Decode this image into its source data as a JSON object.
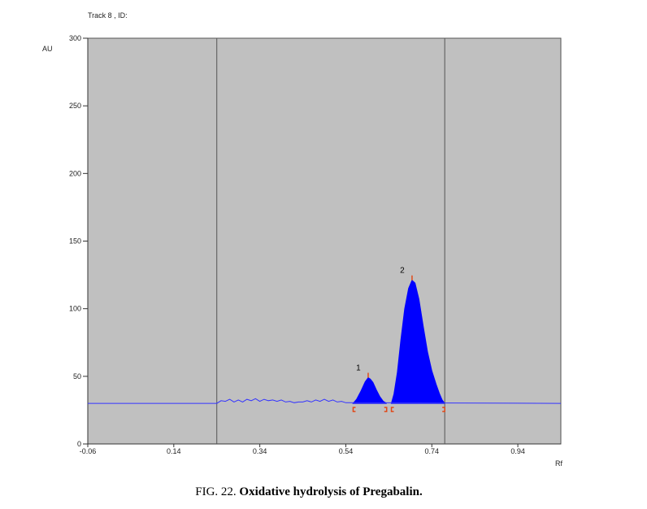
{
  "caption": {
    "prefix": "FIG. 22.",
    "title": "Oxidative hydrolysis of Pregabalin."
  },
  "chart_data": {
    "type": "area",
    "header": "Track  8 , ID:",
    "ylabel": "AU",
    "xlabel": "Rf",
    "xlim": [
      -0.06,
      1.04
    ],
    "ylim": [
      0,
      300
    ],
    "x_ticks": [
      -0.06,
      0.14,
      0.34,
      0.54,
      0.74,
      0.94
    ],
    "x_tick_labels": [
      "-0.06",
      "0.14",
      "0.34",
      "0.54",
      "0.74",
      "0.94"
    ],
    "y_ticks": [
      0,
      50,
      100,
      150,
      200,
      250,
      300
    ],
    "y_tick_labels": [
      "0",
      "50",
      "100",
      "150",
      "200",
      "250",
      "300"
    ],
    "grid": false,
    "plot_background": "#c0c0c0",
    "baseline_color": "#3333ff",
    "peak_color": "#0000ff",
    "marker_color": "#e04a1a",
    "baseline_au": 30,
    "vertical_markers_rf": [
      0.24,
      0.77
    ],
    "trace": {
      "x": [
        -0.06,
        0.24,
        0.25,
        0.26,
        0.27,
        0.28,
        0.29,
        0.3,
        0.31,
        0.32,
        0.33,
        0.34,
        0.35,
        0.36,
        0.37,
        0.38,
        0.39,
        0.4,
        0.41,
        0.42,
        0.43,
        0.44,
        0.45,
        0.46,
        0.47,
        0.48,
        0.49,
        0.5,
        0.51,
        0.52,
        0.53,
        0.54,
        0.55,
        1.04
      ],
      "y": [
        30,
        30,
        32,
        31.5,
        33,
        31,
        32.5,
        31,
        33,
        32,
        33.5,
        31.5,
        33,
        32,
        32.5,
        31.5,
        32.5,
        31,
        31.5,
        30.5,
        31,
        31,
        32,
        31,
        32.5,
        31.5,
        33,
        31.5,
        32.5,
        31,
        31.5,
        30.5,
        30.5,
        30
      ]
    },
    "peaks": [
      {
        "label": "1",
        "x": [
          0.557,
          0.565,
          0.575,
          0.585,
          0.592,
          0.597,
          0.603,
          0.611,
          0.619,
          0.627,
          0.635
        ],
        "y": [
          30,
          33,
          39,
          46,
          49,
          48,
          45.5,
          40,
          35,
          31.5,
          30
        ]
      },
      {
        "label": "2",
        "x": [
          0.646,
          0.652,
          0.66,
          0.668,
          0.677,
          0.686,
          0.694,
          0.701,
          0.71,
          0.72,
          0.73,
          0.74,
          0.75,
          0.758,
          0.764,
          0.77
        ],
        "y": [
          30,
          37,
          53,
          77,
          100,
          115,
          121,
          119,
          107,
          87,
          68,
          54,
          44,
          37,
          32.5,
          30
        ]
      }
    ]
  }
}
